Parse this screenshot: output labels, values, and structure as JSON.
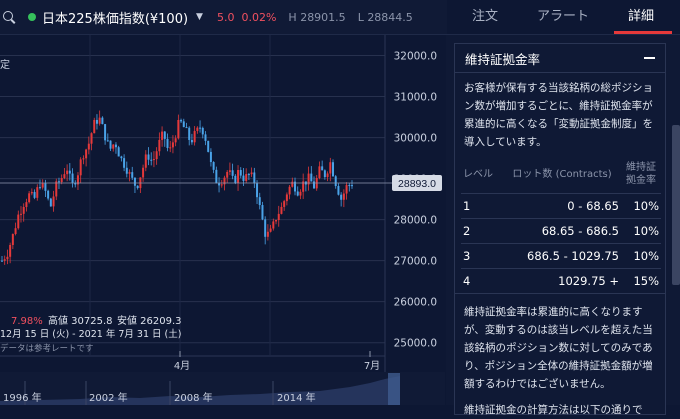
{
  "header": {
    "symbol": "日本225株価指数(¥100)",
    "change": "5.0",
    "change_pct": "0.02%",
    "high": "H 28901.5",
    "low": "L 28844.5"
  },
  "tabs": [
    {
      "label": "注文"
    },
    {
      "label": "アラート"
    },
    {
      "label": "詳細"
    }
  ],
  "chart": {
    "left_edge_label": "定",
    "current_price": "28893.0",
    "stats_pct": "7.98%",
    "stats_high": "高値 30725.8",
    "stats_low": "安値 26209.3",
    "date_range": "12月 15 日 (火) - 2021 年 7月 31 日 (土)",
    "disclaimer": "データは参考レートです",
    "x_ticks": [
      "4月",
      "7月"
    ],
    "nav_labels": [
      "1996 年",
      "2002 年",
      "2008 年",
      "2014 年"
    ]
  },
  "chart_data": {
    "type": "candlestick",
    "y_ticks": [
      "32000.0",
      "31000.0",
      "30000.0",
      "29000.0",
      "28000.0",
      "27000.0",
      "26000.0",
      "25000.0"
    ],
    "ylim": [
      24700,
      32500
    ],
    "path": [
      27000,
      27200,
      27600,
      28100,
      28400,
      28600,
      28500,
      28900,
      28700,
      28300,
      28800,
      29000,
      29300,
      28800,
      29100,
      29600,
      29800,
      30300,
      30500,
      30100,
      29700,
      29900,
      29500,
      29300,
      29000,
      28800,
      29200,
      29600,
      29400,
      29800,
      30100,
      29600,
      30000,
      30400,
      30200,
      29900,
      30100,
      30300,
      29900,
      29200,
      28900,
      29000,
      29200,
      28900,
      29200,
      29000,
      29100,
      28900,
      28200,
      27600,
      27700,
      28100,
      28300,
      28700,
      28900,
      28700,
      28900,
      29000,
      28800,
      29200,
      29100,
      29400,
      28900,
      28500,
      28800,
      28900
    ]
  },
  "panel": {
    "title": "維持証拠金率",
    "description": "お客様が保有する当該銘柄の総ポジション数が増加するごとに、維持証拠金率が累進的に高くなる「変動証拠金制度」を導入しています。",
    "table": {
      "headers": [
        "レベル",
        "ロット数 (Contracts)",
        "維持証拠金率"
      ],
      "rows": [
        {
          "level": "1",
          "lots": "0 - 68.65",
          "rate": "10%"
        },
        {
          "level": "2",
          "lots": "68.65 - 686.5",
          "rate": "10%"
        },
        {
          "level": "3",
          "lots": "686.5 - 1029.75",
          "rate": "10%"
        },
        {
          "level": "4",
          "lots": "1029.75 +",
          "rate": "15%"
        }
      ]
    },
    "note": "維持証拠金率は累進的に高くなりますが、変動するのは該当レベルを超えた当該銘柄のポジション数に対してのみであり、ポジション全体の維持証拠金額が増額するわけではございません。",
    "note2": "維持証拠金の計算方法は以下の通りで"
  },
  "colors": {
    "up": "#e5393a",
    "down": "#4aa3e8",
    "accent": "#e5393a",
    "background": "#0d1733"
  }
}
